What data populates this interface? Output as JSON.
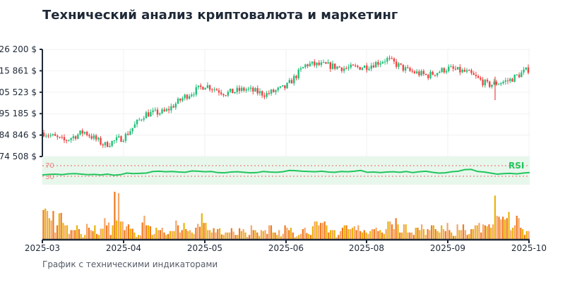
{
  "header": {
    "title": "Технический анализ криптовалюта и маркетинг"
  },
  "footer": {
    "subtitle": "График с техническими индикаторами"
  },
  "colors": {
    "up": "#22c07a",
    "down": "#ef4444",
    "rsi_line": "#22c55e",
    "rsi_band": "#e8f7ec",
    "rsi_threshold": "#f08080",
    "volume_primary": "#f07a1f",
    "volume_secondary": "#eab308",
    "volume_light": "#f6a66a",
    "axis": "#1f2937",
    "grid": "#f1f1f1"
  },
  "chart_data": {
    "type": "candlestick",
    "title": "Технический анализ криптовалюта и маркетинг",
    "subtitle": "График с техническими индикаторами",
    "price_axis": {
      "ticks": [
        "126 200 $",
        "115 861 $",
        "105 523 $",
        "95 185 $",
        "84 846 $",
        "74 508 $"
      ],
      "tick_values": [
        126200,
        115861,
        105523,
        95185,
        84846,
        74508
      ],
      "range": [
        74508,
        126200
      ]
    },
    "x_axis": {
      "ticks": [
        "2025-03",
        "2025-04",
        "2025-05",
        "2025-06",
        "2025-08",
        "2025-09",
        "2025-10"
      ]
    },
    "price_close_approx": {
      "dates": [
        "2025-03-01",
        "2025-03-10",
        "2025-03-20",
        "2025-03-28",
        "2025-04-05",
        "2025-04-15",
        "2025-04-25",
        "2025-05-01",
        "2025-05-10",
        "2025-05-20",
        "2025-06-01",
        "2025-06-10",
        "2025-06-20",
        "2025-07-01",
        "2025-07-10",
        "2025-07-20",
        "2025-08-01",
        "2025-08-10",
        "2025-08-20",
        "2025-09-01",
        "2025-09-10",
        "2025-09-18",
        "2025-09-22",
        "2025-09-28",
        "2025-10-01"
      ],
      "values": [
        86000,
        82000,
        86500,
        80000,
        84000,
        95000,
        96000,
        103500,
        109000,
        105000,
        107000,
        104500,
        108000,
        119000,
        118500,
        117000,
        118000,
        121500,
        116000,
        113500,
        117000,
        115000,
        109000,
        111000,
        116500
      ]
    },
    "price_extremes": {
      "high": 125500,
      "low": 76000,
      "notable_spike_low_2025_09": 101800
    },
    "rsi": {
      "label": "RSI",
      "upper": 70,
      "lower": 30,
      "upper_label": "70",
      "lower_label": "30",
      "values_approx": [
        35,
        37,
        38,
        36,
        39,
        40,
        38,
        36,
        37,
        35,
        38,
        34,
        36,
        42,
        40,
        41,
        42,
        48,
        49,
        47,
        48,
        46,
        45,
        50,
        49,
        47,
        48,
        44,
        43,
        46,
        47,
        45,
        43,
        44,
        48,
        46,
        45,
        47,
        52,
        51,
        49,
        48,
        47,
        49,
        46,
        45,
        48,
        47,
        49,
        52,
        45,
        46,
        44,
        46,
        47,
        45,
        48,
        44,
        47,
        49,
        45,
        42,
        43,
        47,
        49,
        55,
        56,
        48,
        46,
        42,
        38,
        40,
        41,
        39,
        42,
        44
      ]
    },
    "volume": {
      "legend": "",
      "relative_heights_approx": [
        0.62,
        0.65,
        0.6,
        0.45,
        0.4,
        0.6,
        0.15,
        0.3,
        0.55,
        0.56,
        0.35,
        0.3,
        0.3,
        0.12,
        0.2,
        0.2,
        0.2,
        0.3,
        0.22,
        0.12,
        0.05,
        0.1,
        0.33,
        0.25,
        0.2,
        0.18,
        0.3,
        0.12,
        0.1,
        0.23,
        0.23,
        0.45,
        0.3,
        0.36,
        0.1,
        0.3,
        1.0,
        0.4,
        0.97,
        0.38,
        0.38,
        0.2,
        0.28,
        0.32,
        0.23,
        0.23,
        0.15,
        0.06,
        0.1,
        0.09,
        0.36,
        0.5,
        0.3,
        0.3,
        0.28,
        0.1,
        0.12,
        0.25,
        0.2,
        0.2,
        0.25,
        0.15,
        0.1,
        0.12,
        0.18,
        0.18,
        0.18,
        0.4,
        0.3,
        0.15,
        0.2,
        0.35,
        0.22,
        0.18,
        0.2,
        0.15,
        0.12,
        0.25,
        0.33,
        0.27,
        0.55,
        0.35,
        0.35,
        0.2,
        0.2,
        0.15,
        0.24,
        0.15,
        0.22,
        0.24,
        0.11,
        0.1,
        0.15,
        0.15,
        0.15,
        0.24,
        0.17,
        0.1,
        0.1,
        0.24,
        0.18,
        0.22,
        0.15,
        0.06,
        0.1,
        0.3,
        0.2,
        0.2,
        0.15,
        0.08,
        0.2,
        0.18,
        0.2,
        0.12,
        0.3,
        0.3,
        0.15,
        0.15,
        0.1,
        0.2,
        0.07,
        0.12,
        0.3,
        0.25,
        0.2,
        0.25,
        0.15,
        0.05,
        0.07,
        0.1,
        0.12,
        0.22,
        0.25,
        0.14,
        0.12,
        0.1,
        0.28,
        0.38,
        0.38,
        0.3,
        0.35,
        0.35,
        0.38,
        0.3,
        0.15,
        0.2,
        0.2,
        0.2,
        0.05,
        0.1,
        0.18,
        0.25,
        0.3,
        0.3,
        0.22,
        0.22,
        0.25,
        0.28,
        0.2,
        0.3,
        0.18,
        0.15,
        0.2,
        0.15,
        0.12,
        0.18,
        0.22,
        0.22,
        0.25,
        0.18,
        0.2,
        0.15,
        0.12,
        0.22,
        0.38,
        0.38,
        0.32,
        0.22,
        0.45,
        0.32,
        0.15,
        0.15,
        0.32,
        0.32,
        0.15,
        0.15,
        0.15,
        0.1,
        0.25,
        0.25,
        0.2,
        0.32,
        0.22,
        0.1,
        0.22,
        0.2,
        0.3,
        0.3,
        0.22,
        0.18,
        0.15,
        0.3,
        0.22,
        0.18,
        0.35,
        0.2,
        0.15,
        0.08,
        0.08,
        0.32,
        0.2,
        0.2,
        0.32,
        0.2,
        0.1,
        0.12,
        0.22,
        0.22,
        0.3,
        0.3,
        0.35,
        0.15,
        0.32,
        0.3,
        0.28,
        0.32,
        0.25,
        0.32,
        0.92,
        0.5,
        0.48,
        0.42,
        0.48,
        0.42,
        0.45,
        0.58,
        0.2,
        0.25,
        0.3,
        0.5,
        0.45,
        0.25,
        0.22,
        0.1,
        0.18,
        0.18
      ]
    },
    "grid": true,
    "legend_position": "none"
  }
}
